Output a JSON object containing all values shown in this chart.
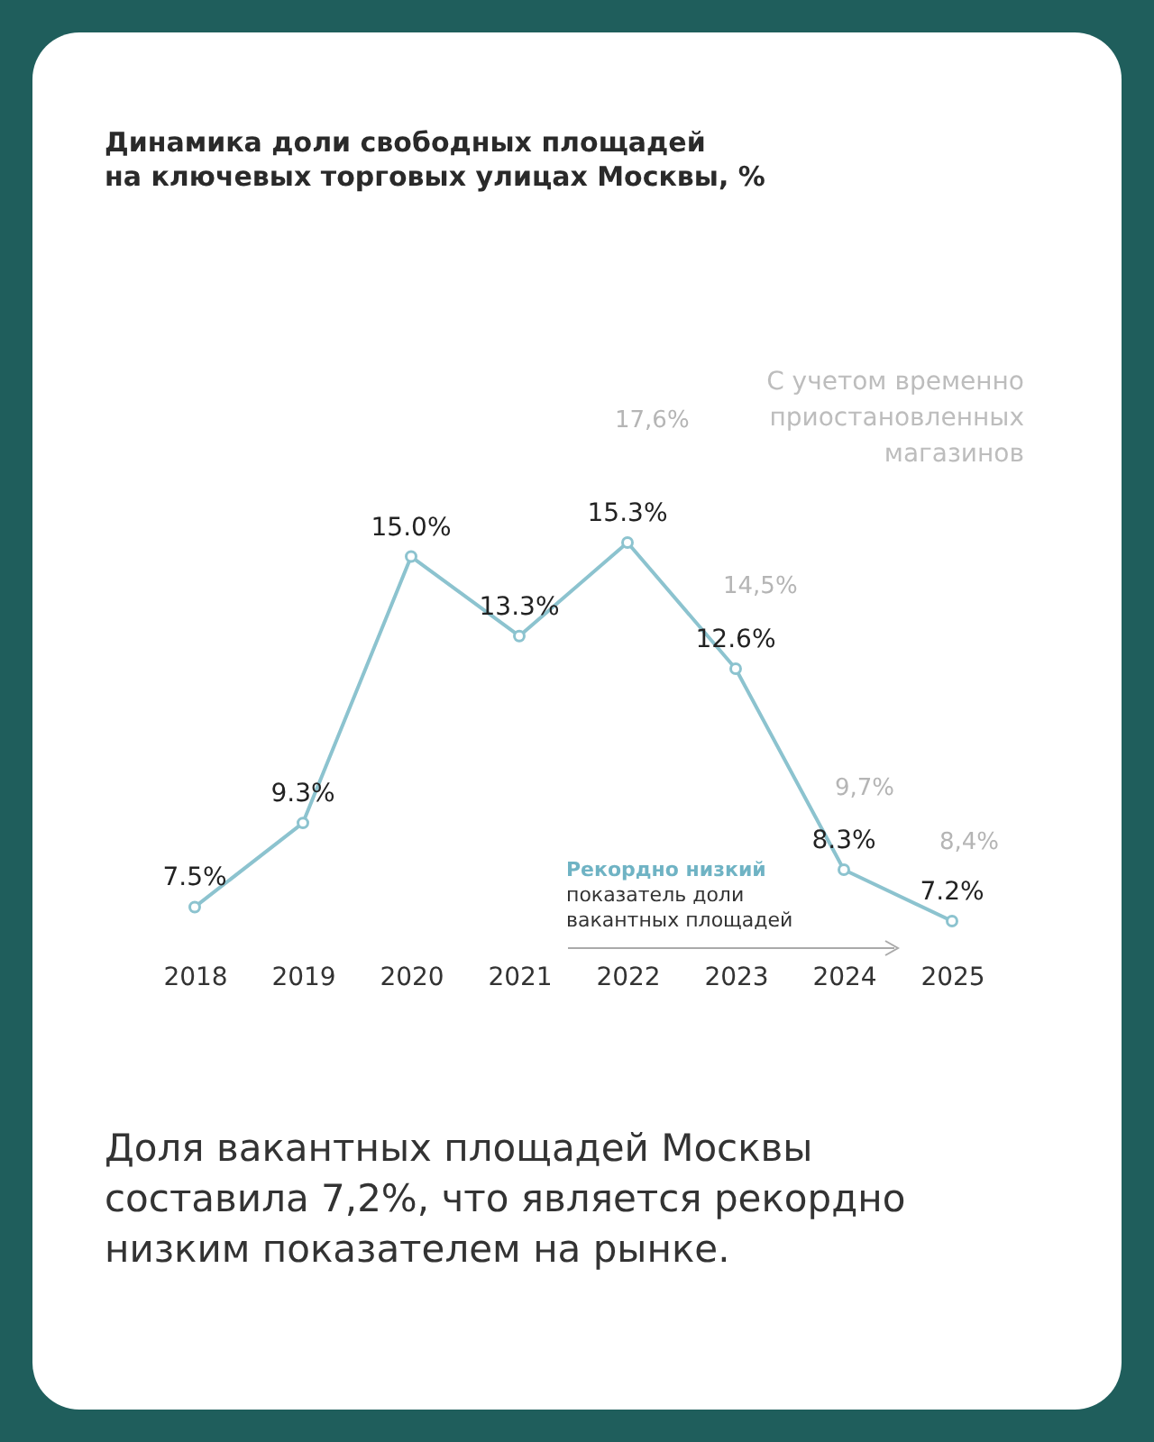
{
  "chart_data": {
    "type": "line",
    "title": "Динамика доли свободных площадей\nна ключевых торговых улицах Москвы, %",
    "categories": [
      "2018",
      "2019",
      "2020",
      "2021",
      "2022",
      "2023",
      "2024",
      "2025"
    ],
    "series": [
      {
        "color": "#8cc3cf",
        "values": [
          7.5,
          9.3,
          15.0,
          13.3,
          15.3,
          12.6,
          8.3,
          7.2
        ],
        "value_labels": [
          "7.5%",
          "9.3%",
          "15.0%",
          "13.3%",
          "15.3%",
          "12.6%",
          "8.3%",
          "7.2%"
        ]
      }
    ],
    "marker": "circle",
    "annotations": [
      "17,6%",
      "14,5%",
      "9,7%",
      "8,4%",
      "С учетом временно\nприостановленных\nмагазинов",
      "Рекордно низкий",
      "показатель доли\nвакантных площадей",
      "Доля вакантных площадей Москвы\nсоставила 7,2%, что является рекордно\nнизким показателем на рынке."
    ]
  }
}
